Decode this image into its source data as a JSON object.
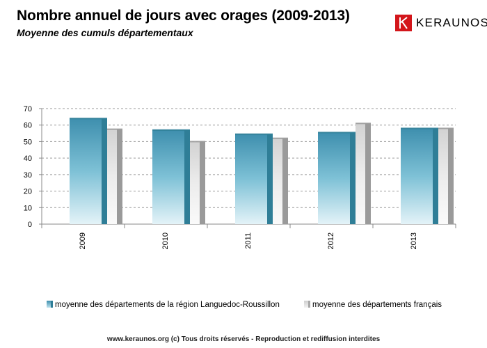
{
  "header": {
    "title": "Nombre annuel de jours avec orages (2009-2013)",
    "subtitle": "Moyenne des cumuls départementaux"
  },
  "logo": {
    "text": "KERAUNOS",
    "icon": "keraunos-logo-icon",
    "color": "#d3161b"
  },
  "footer": {
    "text": "www.keraunos.org  (c) Tous droits réservés - Reproduction et rediffusion interdites"
  },
  "chart_data": {
    "type": "bar",
    "categories": [
      "2009",
      "2010",
      "2011",
      "2012",
      "2013"
    ],
    "series": [
      {
        "name": "moyenne des départements de la région Languedoc-Roussillon",
        "values": [
          64,
          57,
          54.5,
          55.5,
          58
        ],
        "color": "#5aaac4"
      },
      {
        "name": "moyenne des départements français",
        "values": [
          57.5,
          50,
          52,
          61,
          58
        ],
        "color": "#c8c8c8"
      }
    ],
    "ylim": [
      0,
      70
    ],
    "yticks": [
      0,
      10,
      20,
      30,
      40,
      50,
      60,
      70
    ],
    "grid": true,
    "legend_position": "bottom"
  }
}
